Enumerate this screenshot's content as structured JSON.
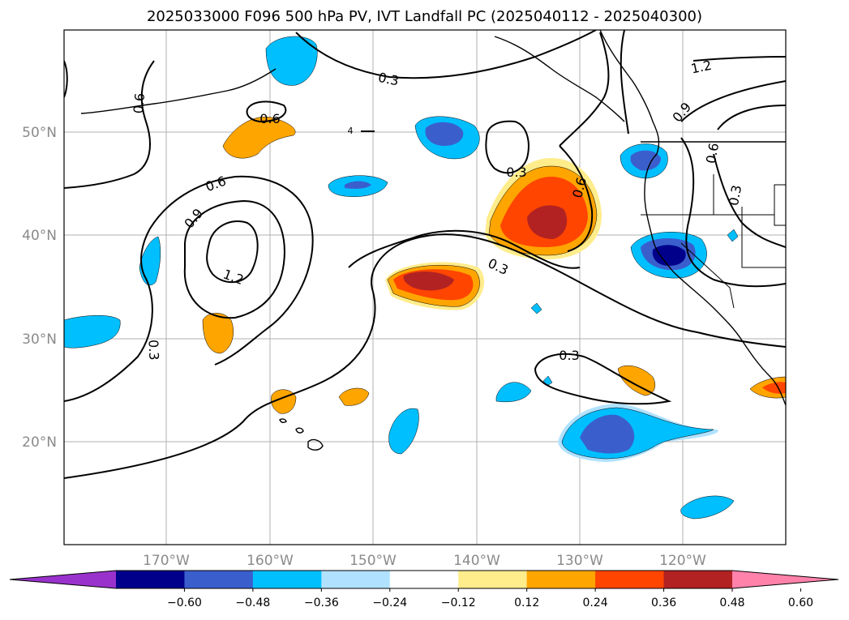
{
  "title": "2025033000 F096 500 hPa PV, IVT Landfall PC (2025040112 - 2025040300)",
  "map": {
    "lat_labels": [
      "50°N",
      "40°N",
      "30°N",
      "20°N"
    ],
    "lon_labels": [
      "170°W",
      "160°W",
      "150°W",
      "140°W",
      "130°W",
      "120°W"
    ],
    "contour_labels": [
      "0.6",
      "0.3",
      "0.6",
      "0.3",
      "0.6",
      "0.9",
      "1.2",
      "0.3",
      "0.3",
      "0.9",
      "0.6",
      "0.3",
      "0.6",
      "1.2",
      "4"
    ],
    "colors": {
      "grid": "#b0b0b0",
      "land": "#000000"
    }
  },
  "colorbar": {
    "ticks": [
      "−0.60",
      "−0.48",
      "−0.36",
      "−0.24",
      "−0.12",
      "0.12",
      "0.24",
      "0.36",
      "0.48",
      "0.60"
    ],
    "colors": [
      "#9932cc",
      "#00008b",
      "#3a5fcd",
      "#00bfff",
      "#b0e2ff",
      "#ffffff",
      "#ffec8b",
      "#ffa500",
      "#ff4500",
      "#b22222",
      "#ff82ab"
    ]
  }
}
